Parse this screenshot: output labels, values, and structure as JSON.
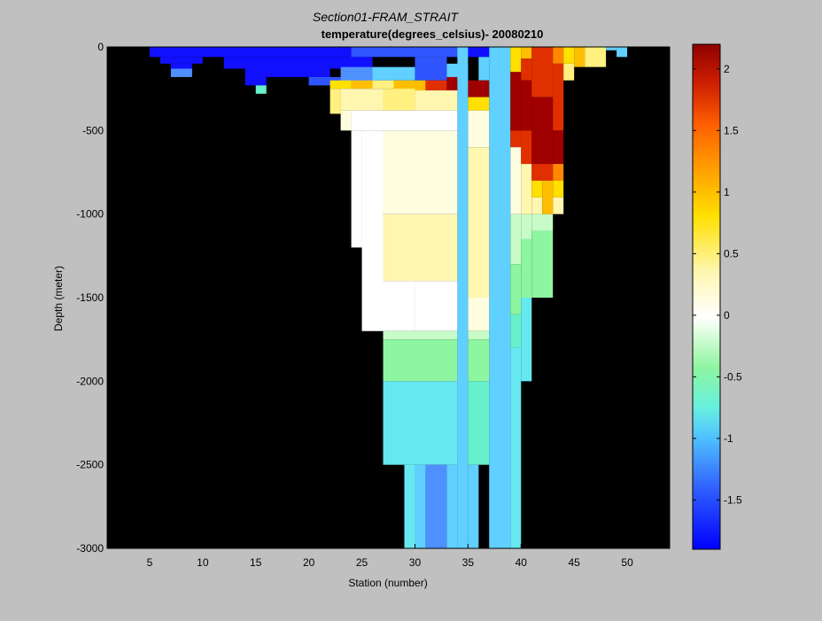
{
  "chart_data": {
    "type": "heatmap",
    "title": "Section01-FRAM_STRAIT",
    "subtitle": "temperature(degrees_celsius)- 20080210",
    "xlabel": "Station (number)",
    "ylabel": "Depth (meter)",
    "xlim": [
      1,
      54
    ],
    "ylim": [
      -3000,
      0
    ],
    "xticks": [
      "5",
      "10",
      "15",
      "20",
      "25",
      "30",
      "35",
      "40",
      "45",
      "50"
    ],
    "yticks": [
      "0",
      "-500",
      "-1000",
      "-1500",
      "-2000",
      "-2500",
      "-3000"
    ],
    "colorbar": {
      "range": [
        -1.9,
        2.2
      ],
      "ticks": [
        "2",
        "1.5",
        "1",
        "0.5",
        "0",
        "-0.5",
        "-1",
        "-1.5"
      ]
    },
    "background": "#000000",
    "colors": {
      "-1.8": "#1010ff",
      "-1.5": "#2f55ff",
      "-1.2": "#4f90ff",
      "-1.0": "#5fd0ff",
      "-0.8": "#66e8f0",
      "-0.6": "#66f0cc",
      "-0.4": "#8ef5a0",
      "-0.2": "#c8fbc8",
      "0.0": "#ffffff",
      "0.2": "#fffde0",
      "0.4": "#fff6b0",
      "0.6": "#fff080",
      "0.9": "#ffe000",
      "1.2": "#ffbf00",
      "1.5": "#ff8800",
      "1.8": "#e03000",
      "2.1": "#a00000"
    },
    "cells": [
      {
        "x0": 5,
        "x1": 24,
        "y0": 0,
        "y1": -60,
        "t": -1.8
      },
      {
        "x0": 24,
        "x1": 35,
        "y0": 0,
        "y1": -60,
        "t": -1.5
      },
      {
        "x0": 35,
        "x1": 38,
        "y0": 0,
        "y1": -60,
        "t": -1.8
      },
      {
        "x0": 6,
        "x1": 10,
        "y0": -60,
        "y1": -100,
        "t": -1.8
      },
      {
        "x0": 12,
        "x1": 26,
        "y0": -60,
        "y1": -130,
        "t": -1.8
      },
      {
        "x0": 7,
        "x1": 9,
        "y0": -100,
        "y1": -170,
        "t": -1.8
      },
      {
        "x0": 7,
        "x1": 9,
        "y0": -130,
        "y1": -180,
        "t": -1.2
      },
      {
        "x0": 14,
        "x1": 16,
        "y0": -130,
        "y1": -230,
        "t": -1.8
      },
      {
        "x0": 16,
        "x1": 22,
        "y0": -130,
        "y1": -180,
        "t": -1.8
      },
      {
        "x0": 20,
        "x1": 23,
        "y0": -180,
        "y1": -230,
        "t": -1.5
      },
      {
        "x0": 23,
        "x1": 26,
        "y0": -120,
        "y1": -230,
        "t": -1.2
      },
      {
        "x0": 15,
        "x1": 16,
        "y0": -230,
        "y1": -280,
        "t": -0.6
      },
      {
        "x0": 26,
        "x1": 30,
        "y0": -120,
        "y1": -200,
        "t": -1.0
      },
      {
        "x0": 30,
        "x1": 33,
        "y0": -60,
        "y1": -200,
        "t": -1.5
      },
      {
        "x0": 33,
        "x1": 35,
        "y0": -100,
        "y1": -200,
        "t": -1.0
      },
      {
        "x0": 36,
        "x1": 37,
        "y0": -60,
        "y1": -200,
        "t": -1.0
      },
      {
        "x0": 22,
        "x1": 24,
        "y0": -200,
        "y1": -250,
        "t": 0.9
      },
      {
        "x0": 24,
        "x1": 26,
        "y0": -200,
        "y1": -250,
        "t": 1.2
      },
      {
        "x0": 26,
        "x1": 28,
        "y0": -200,
        "y1": -250,
        "t": 0.6
      },
      {
        "x0": 28,
        "x1": 31,
        "y0": -200,
        "y1": -260,
        "t": 1.2
      },
      {
        "x0": 31,
        "x1": 33,
        "y0": -200,
        "y1": -260,
        "t": 1.8
      },
      {
        "x0": 33,
        "x1": 34,
        "y0": -180,
        "y1": -300,
        "t": 2.1
      },
      {
        "x0": 35,
        "x1": 37,
        "y0": -200,
        "y1": -300,
        "t": 2.1
      },
      {
        "x0": 22,
        "x1": 23,
        "y0": -250,
        "y1": -400,
        "t": 0.6
      },
      {
        "x0": 23,
        "x1": 27,
        "y0": -250,
        "y1": -380,
        "t": 0.4
      },
      {
        "x0": 27,
        "x1": 30,
        "y0": -250,
        "y1": -380,
        "t": 0.6
      },
      {
        "x0": 30,
        "x1": 34,
        "y0": -260,
        "y1": -380,
        "t": 0.4
      },
      {
        "x0": 35,
        "x1": 37,
        "y0": -300,
        "y1": -380,
        "t": 0.9
      },
      {
        "x0": 23,
        "x1": 24,
        "y0": -380,
        "y1": -500,
        "t": 0.2
      },
      {
        "x0": 24,
        "x1": 34,
        "y0": -380,
        "y1": -500,
        "t": 0.0
      },
      {
        "x0": 35,
        "x1": 37,
        "y0": -380,
        "y1": -600,
        "t": 0.2
      },
      {
        "x0": 24,
        "x1": 25,
        "y0": -500,
        "y1": -1200,
        "t": 0.0
      },
      {
        "x0": 25,
        "x1": 27,
        "y0": -500,
        "y1": -1700,
        "t": 0.0
      },
      {
        "x0": 27,
        "x1": 34,
        "y0": -500,
        "y1": -1000,
        "t": 0.2
      },
      {
        "x0": 27,
        "x1": 34,
        "y0": -1000,
        "y1": -1400,
        "t": 0.4
      },
      {
        "x0": 35,
        "x1": 37,
        "y0": -600,
        "y1": -1500,
        "t": 0.4
      },
      {
        "x0": 27,
        "x1": 30,
        "y0": -1400,
        "y1": -1700,
        "t": 0.0
      },
      {
        "x0": 30,
        "x1": 34,
        "y0": -1400,
        "y1": -1700,
        "t": 0.0
      },
      {
        "x0": 35,
        "x1": 37,
        "y0": -1500,
        "y1": -1700,
        "t": 0.2
      },
      {
        "x0": 27,
        "x1": 34,
        "y0": -1700,
        "y1": -1750,
        "t": -0.2
      },
      {
        "x0": 35,
        "x1": 37,
        "y0": -1700,
        "y1": -1750,
        "t": -0.2
      },
      {
        "x0": 27,
        "x1": 34,
        "y0": -1750,
        "y1": -2000,
        "t": -0.4
      },
      {
        "x0": 35,
        "x1": 37,
        "y0": -1750,
        "y1": -2000,
        "t": -0.4
      },
      {
        "x0": 27,
        "x1": 34,
        "y0": -2000,
        "y1": -2500,
        "t": -0.8
      },
      {
        "x0": 35,
        "x1": 37,
        "y0": -2000,
        "y1": -2500,
        "t": -0.6
      },
      {
        "x0": 29,
        "x1": 30,
        "y0": -2500,
        "y1": -3000,
        "t": -0.8
      },
      {
        "x0": 30,
        "x1": 31,
        "y0": -2500,
        "y1": -3000,
        "t": -1.0
      },
      {
        "x0": 31,
        "x1": 33,
        "y0": -2500,
        "y1": -3000,
        "t": -1.2
      },
      {
        "x0": 33,
        "x1": 34,
        "y0": -2500,
        "y1": -3000,
        "t": -1.0
      },
      {
        "x0": 35,
        "x1": 36,
        "y0": -2500,
        "y1": -3000,
        "t": -1.0
      },
      {
        "x0": 37,
        "x1": 38,
        "y0": -2500,
        "y1": -3000,
        "t": -1.0
      },
      {
        "x0": 34,
        "x1": 35,
        "y0": 0,
        "y1": -3000,
        "t": -1.0
      },
      {
        "x0": 37,
        "x1": 39,
        "y0": 0,
        "y1": -3000,
        "t": -1.0
      },
      {
        "x0": 39,
        "x1": 40,
        "y0": -1000,
        "y1": -1300,
        "t": -0.2
      },
      {
        "x0": 39,
        "x1": 40,
        "y0": -1300,
        "y1": -1600,
        "t": -0.4
      },
      {
        "x0": 39,
        "x1": 40,
        "y0": -1600,
        "y1": -1800,
        "t": -0.6
      },
      {
        "x0": 39,
        "x1": 40,
        "y0": -1800,
        "y1": -3000,
        "t": -0.8
      },
      {
        "x0": 40,
        "x1": 41,
        "y0": -1000,
        "y1": -1150,
        "t": -0.2
      },
      {
        "x0": 40,
        "x1": 41,
        "y0": -1150,
        "y1": -1500,
        "t": -0.4
      },
      {
        "x0": 40,
        "x1": 41,
        "y0": -1500,
        "y1": -2000,
        "t": -0.8
      },
      {
        "x0": 41,
        "x1": 43,
        "y0": -1000,
        "y1": -1100,
        "t": -0.2
      },
      {
        "x0": 41,
        "x1": 43,
        "y0": -1100,
        "y1": -1500,
        "t": -0.4
      },
      {
        "x0": 39,
        "x1": 40,
        "y0": 0,
        "y1": -150,
        "t": 0.9
      },
      {
        "x0": 39,
        "x1": 40,
        "y0": -150,
        "y1": -500,
        "t": 2.1
      },
      {
        "x0": 39,
        "x1": 40,
        "y0": -500,
        "y1": -600,
        "t": 1.8
      },
      {
        "x0": 39,
        "x1": 40,
        "y0": -600,
        "y1": -1000,
        "t": 0.2
      },
      {
        "x0": 40,
        "x1": 41,
        "y0": 0,
        "y1": -70,
        "t": 1.2
      },
      {
        "x0": 40,
        "x1": 41,
        "y0": -70,
        "y1": -200,
        "t": 1.8
      },
      {
        "x0": 40,
        "x1": 41,
        "y0": -200,
        "y1": -500,
        "t": 2.1
      },
      {
        "x0": 40,
        "x1": 41,
        "y0": -500,
        "y1": -700,
        "t": 1.8
      },
      {
        "x0": 40,
        "x1": 41,
        "y0": -700,
        "y1": -1000,
        "t": 0.4
      },
      {
        "x0": 41,
        "x1": 43,
        "y0": 0,
        "y1": -300,
        "t": 1.8
      },
      {
        "x0": 41,
        "x1": 43,
        "y0": -300,
        "y1": -700,
        "t": 2.1
      },
      {
        "x0": 41,
        "x1": 43,
        "y0": -700,
        "y1": -800,
        "t": 1.8
      },
      {
        "x0": 41,
        "x1": 42,
        "y0": -800,
        "y1": -900,
        "t": 0.9
      },
      {
        "x0": 41,
        "x1": 42,
        "y0": -900,
        "y1": -1000,
        "t": 0.4
      },
      {
        "x0": 42,
        "x1": 43,
        "y0": -800,
        "y1": -1000,
        "t": 1.2
      },
      {
        "x0": 43,
        "x1": 44,
        "y0": 0,
        "y1": -100,
        "t": 1.5
      },
      {
        "x0": 43,
        "x1": 44,
        "y0": -100,
        "y1": -500,
        "t": 1.8
      },
      {
        "x0": 43,
        "x1": 44,
        "y0": -500,
        "y1": -700,
        "t": 2.1
      },
      {
        "x0": 43,
        "x1": 44,
        "y0": -700,
        "y1": -800,
        "t": 1.5
      },
      {
        "x0": 43,
        "x1": 44,
        "y0": -800,
        "y1": -900,
        "t": 0.9
      },
      {
        "x0": 43,
        "x1": 44,
        "y0": -900,
        "y1": -1000,
        "t": 0.4
      },
      {
        "x0": 44,
        "x1": 45,
        "y0": 0,
        "y1": -100,
        "t": 0.9
      },
      {
        "x0": 44,
        "x1": 45,
        "y0": -100,
        "y1": -200,
        "t": 0.6
      },
      {
        "x0": 45,
        "x1": 46,
        "y0": 0,
        "y1": -120,
        "t": 1.2
      },
      {
        "x0": 46,
        "x1": 48,
        "y0": 0,
        "y1": -120,
        "t": 0.6
      },
      {
        "x0": 48,
        "x1": 49,
        "y0": 0,
        "y1": -20,
        "t": -1.0
      },
      {
        "x0": 49,
        "x1": 50,
        "y0": 0,
        "y1": -60,
        "t": -1.0
      }
    ]
  }
}
